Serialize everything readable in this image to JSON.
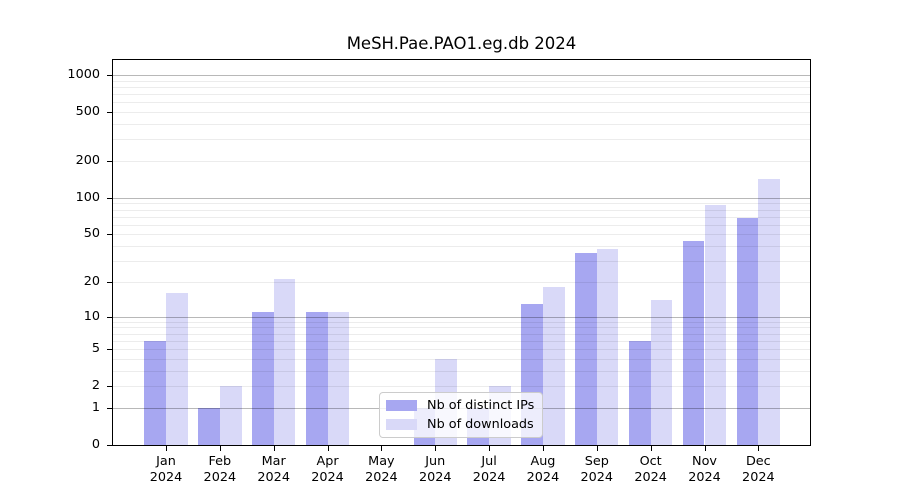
{
  "chart_data": {
    "type": "bar",
    "title": "MeSH.Pae.PAO1.eg.db 2024",
    "year": "2024",
    "categories": [
      "Jan",
      "Feb",
      "Mar",
      "Apr",
      "May",
      "Jun",
      "Jul",
      "Aug",
      "Sep",
      "Oct",
      "Nov",
      "Dec"
    ],
    "series": [
      {
        "name": "Nb of distinct IPs",
        "color": "#a7a7f1",
        "values": [
          6,
          1,
          11,
          11,
          0,
          1,
          1,
          13,
          35,
          6,
          44,
          69
        ]
      },
      {
        "name": "Nb of downloads",
        "color": "#d9d9f8",
        "values": [
          16,
          2,
          21,
          11,
          0,
          4,
          2,
          18,
          38,
          14,
          88,
          142
        ]
      }
    ],
    "y_axis": {
      "scale": "log10(1+x)",
      "tick_labels": [
        "0",
        "1",
        "2",
        "5",
        "10",
        "20",
        "50",
        "100",
        "200",
        "500",
        "1000"
      ],
      "axis_max": 1325,
      "major_gridlines": [
        1,
        10,
        100,
        1000
      ],
      "minor_gridlines": [
        2,
        3,
        4,
        5,
        6,
        7,
        8,
        9,
        20,
        30,
        40,
        50,
        60,
        70,
        80,
        90,
        200,
        300,
        400,
        500,
        600,
        700,
        800,
        900
      ]
    },
    "xlabel": "",
    "ylabel": "",
    "grid": true,
    "legend_position": "bottom-center"
  }
}
